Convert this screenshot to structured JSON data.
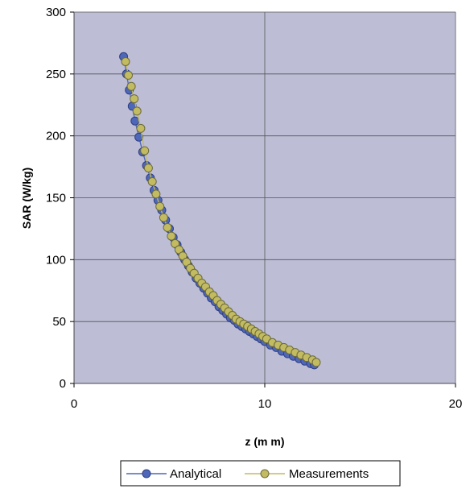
{
  "chart_data": {
    "type": "scatter",
    "title": "",
    "xlabel": "z (m m)",
    "ylabel": "SAR (W/kg)",
    "xlim": [
      0,
      20
    ],
    "ylim": [
      0,
      300
    ],
    "x_ticks": [
      "0",
      "10",
      "20"
    ],
    "y_ticks": [
      "0",
      "50",
      "100",
      "150",
      "200",
      "250",
      "300"
    ],
    "grid": true,
    "legend_position": "bottom",
    "plot_background": "#bdbdd6",
    "series": [
      {
        "name": "Analytical",
        "color": "#4f67b8",
        "marker": "circle",
        "line": true,
        "x": [
          2.6,
          2.75,
          2.9,
          3.05,
          3.2,
          3.4,
          3.6,
          3.8,
          4.0,
          4.2,
          4.4,
          4.6,
          4.8,
          5.0,
          5.2,
          5.4,
          5.6,
          5.8,
          6.0,
          6.2,
          6.4,
          6.6,
          6.8,
          7.0,
          7.2,
          7.4,
          7.6,
          7.8,
          8.0,
          8.2,
          8.4,
          8.6,
          8.8,
          9.0,
          9.2,
          9.4,
          9.6,
          9.8,
          10.0,
          10.3,
          10.6,
          10.9,
          11.2,
          11.5,
          11.8,
          12.1,
          12.4,
          12.6
        ],
        "y": [
          264,
          250,
          237,
          224,
          212,
          199,
          187,
          176,
          166,
          156,
          148,
          140,
          132,
          125,
          118,
          112,
          106,
          100,
          95,
          90,
          85,
          81,
          77,
          73,
          69,
          66,
          62,
          59,
          56,
          53,
          51,
          48,
          46,
          44,
          42,
          40,
          38,
          36,
          34,
          31,
          29,
          26,
          24,
          22,
          20,
          18,
          16,
          15
        ]
      },
      {
        "name": "Measurements",
        "color": "#c2bb62",
        "marker": "circle",
        "line": true,
        "x": [
          2.7,
          2.85,
          3.0,
          3.15,
          3.3,
          3.5,
          3.7,
          3.9,
          4.1,
          4.3,
          4.5,
          4.7,
          4.9,
          5.1,
          5.3,
          5.5,
          5.7,
          5.9,
          6.1,
          6.3,
          6.5,
          6.7,
          6.9,
          7.1,
          7.3,
          7.5,
          7.7,
          7.9,
          8.1,
          8.3,
          8.5,
          8.7,
          8.9,
          9.1,
          9.3,
          9.5,
          9.7,
          9.9,
          10.1,
          10.4,
          10.7,
          11.0,
          11.3,
          11.6,
          11.9,
          12.2,
          12.5,
          12.7
        ],
        "y": [
          260,
          249,
          240,
          230,
          220,
          206,
          188,
          174,
          163,
          153,
          143,
          134,
          126,
          119,
          113,
          108,
          103,
          98,
          93,
          89,
          85,
          81,
          78,
          74,
          71,
          67,
          64,
          61,
          58,
          55,
          52,
          50,
          48,
          46,
          44,
          42,
          40,
          38,
          36,
          33,
          31,
          29,
          27,
          25,
          23,
          21,
          19,
          17
        ]
      }
    ]
  }
}
